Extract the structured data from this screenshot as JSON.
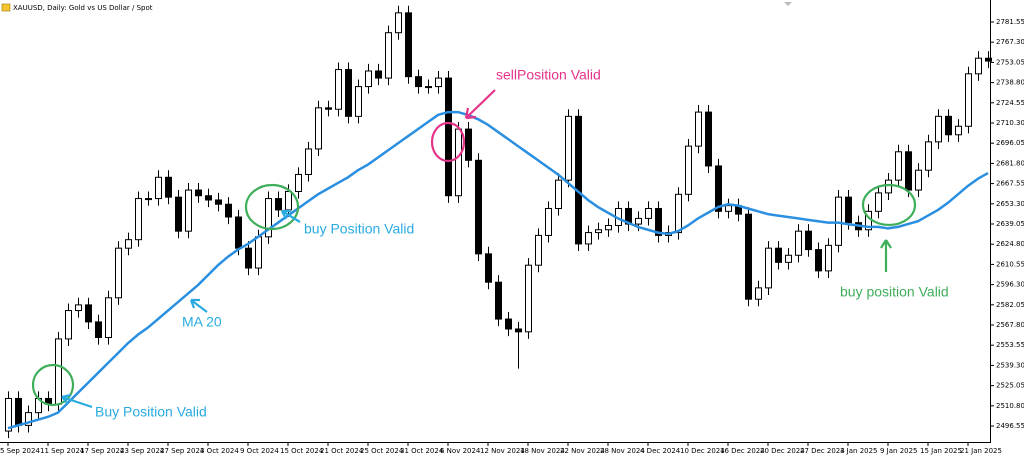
{
  "chart_data": {
    "type": "candlestick",
    "title": "XAUUSD, Daily:  Gold vs US Dollar / Spot",
    "x": [
      "5 Sep 2024",
      null,
      null,
      null,
      "11 Sep 2024",
      null,
      null,
      null,
      "17 Sep 2024",
      null,
      null,
      null,
      "23 Sep 2024",
      null,
      null,
      null,
      "27 Sep 2024",
      null,
      null,
      null,
      "3 Oct 2024",
      null,
      null,
      null,
      "9 Oct 2024",
      null,
      null,
      null,
      "15 Oct 2024",
      null,
      null,
      null,
      "21 Oct 2024",
      null,
      null,
      null,
      "25 Oct 2024",
      null,
      null,
      null,
      "31 Oct 2024",
      null,
      null,
      null,
      "6 Nov 2024",
      null,
      null,
      null,
      "12 Nov 2024",
      null,
      null,
      null,
      "18 Nov 2024",
      null,
      null,
      null,
      "22 Nov 2024",
      null,
      null,
      null,
      "28 Nov 2024",
      null,
      null,
      null,
      "4 Dec 2024",
      null,
      null,
      null,
      "10 Dec 2024",
      null,
      null,
      null,
      "16 Dec 2024",
      null,
      null,
      null,
      "20 Dec 2024",
      null,
      null,
      null,
      "27 Dec 2024",
      null,
      null,
      null,
      "3 Jan 2025",
      null,
      null,
      null,
      "9 Jan 2025",
      null,
      null,
      null,
      "15 Jan 2025",
      null,
      null,
      null,
      "21 Jan 2025",
      null,
      null
    ],
    "open": [
      2493,
      2516,
      2497,
      2506,
      2516,
      2512,
      2558,
      2578,
      2582,
      2570,
      2559,
      2587,
      2622,
      2628,
      2657,
      2657,
      2672,
      2658,
      2634,
      2663,
      2659,
      2656,
      2653,
      2644,
      2622,
      2608,
      2630,
      2657,
      2649,
      2662,
      2674,
      2692,
      2721,
      2720,
      2748,
      2715,
      2736,
      2747,
      2742,
      2774,
      2788,
      2743,
      2736,
      2736,
      2742,
      2659,
      2706,
      2684,
      2618,
      2598,
      2572,
      2565,
      2563,
      2610,
      2631,
      2650,
      2670,
      2715,
      2625,
      2633,
      2635,
      2638,
      2650,
      2639,
      2643,
      2650,
      2631,
      2633,
      2660,
      2694,
      2718,
      2680,
      2648,
      2652,
      2646,
      2586,
      2594,
      2622,
      2612,
      2617,
      2634,
      2621,
      2606,
      2624,
      2658,
      2640,
      2635,
      2648,
      2661,
      2670,
      2690,
      2663,
      2677,
      2697,
      2715,
      2702,
      2708,
      2745,
      2756
    ],
    "high": [
      2521,
      2521,
      2511,
      2521,
      2521,
      2563,
      2583,
      2587,
      2587,
      2575,
      2592,
      2627,
      2633,
      2662,
      2662,
      2677,
      2677,
      2663,
      2668,
      2668,
      2664,
      2661,
      2658,
      2649,
      2627,
      2635,
      2662,
      2662,
      2667,
      2679,
      2697,
      2726,
      2726,
      2753,
      2753,
      2741,
      2752,
      2752,
      2779,
      2793,
      2793,
      2748,
      2741,
      2747,
      2747,
      2711,
      2711,
      2689,
      2623,
      2603,
      2577,
      2570,
      2615,
      2636,
      2655,
      2675,
      2720,
      2720,
      2638,
      2640,
      2643,
      2655,
      2655,
      2648,
      2655,
      2655,
      2638,
      2665,
      2699,
      2723,
      2723,
      2685,
      2657,
      2657,
      2651,
      2599,
      2627,
      2627,
      2622,
      2639,
      2639,
      2626,
      2629,
      2663,
      2663,
      2645,
      2653,
      2666,
      2675,
      2695,
      2695,
      2682,
      2702,
      2720,
      2720,
      2713,
      2750,
      2761,
      2761
    ],
    "low": [
      2488,
      2492,
      2492,
      2501,
      2507,
      2507,
      2553,
      2573,
      2565,
      2554,
      2554,
      2582,
      2617,
      2623,
      2652,
      2652,
      2653,
      2629,
      2629,
      2654,
      2651,
      2648,
      2639,
      2617,
      2603,
      2603,
      2625,
      2644,
      2644,
      2657,
      2669,
      2687,
      2715,
      2715,
      2710,
      2710,
      2731,
      2737,
      2737,
      2769,
      2738,
      2731,
      2731,
      2731,
      2654,
      2654,
      2679,
      2613,
      2593,
      2567,
      2560,
      2537,
      2558,
      2605,
      2626,
      2645,
      2665,
      2620,
      2620,
      2628,
      2630,
      2633,
      2634,
      2634,
      2638,
      2626,
      2626,
      2628,
      2655,
      2689,
      2675,
      2643,
      2643,
      2641,
      2581,
      2581,
      2589,
      2607,
      2607,
      2612,
      2616,
      2601,
      2601,
      2619,
      2635,
      2630,
      2630,
      2643,
      2656,
      2665,
      2658,
      2658,
      2672,
      2692,
      2697,
      2697,
      2703,
      2740,
      2749
    ],
    "close": [
      2516,
      2497,
      2506,
      2516,
      2512,
      2558,
      2578,
      2582,
      2570,
      2559,
      2587,
      2622,
      2628,
      2657,
      2657,
      2672,
      2658,
      2634,
      2663,
      2659,
      2656,
      2653,
      2644,
      2622,
      2608,
      2630,
      2657,
      2649,
      2662,
      2674,
      2692,
      2721,
      2720,
      2748,
      2715,
      2736,
      2747,
      2742,
      2774,
      2788,
      2743,
      2736,
      2736,
      2742,
      2659,
      2706,
      2684,
      2618,
      2598,
      2572,
      2565,
      2563,
      2610,
      2631,
      2650,
      2670,
      2715,
      2625,
      2633,
      2635,
      2638,
      2650,
      2639,
      2643,
      2650,
      2631,
      2633,
      2660,
      2694,
      2718,
      2680,
      2648,
      2652,
      2646,
      2586,
      2594,
      2622,
      2612,
      2617,
      2634,
      2621,
      2606,
      2624,
      2658,
      2640,
      2635,
      2648,
      2661,
      2670,
      2690,
      2663,
      2677,
      2697,
      2715,
      2702,
      2708,
      2745,
      2756,
      2754
    ],
    "series": [
      {
        "name": "MA 20",
        "color": "#2a8fe0",
        "values": [
          2495,
          2497,
          2499,
          2501,
          2503,
          2506,
          2513,
          2520,
          2527,
          2534,
          2541,
          2548,
          2555,
          2561,
          2566,
          2572,
          2578,
          2584,
          2590,
          2596,
          2603,
          2610,
          2616,
          2621,
          2625,
          2630,
          2635,
          2640,
          2645,
          2650,
          2655,
          2660,
          2664,
          2668,
          2672,
          2677,
          2681,
          2686,
          2691,
          2696,
          2701,
          2706,
          2711,
          2716,
          2718,
          2718,
          2716,
          2713,
          2709,
          2704,
          2699,
          2694,
          2689,
          2684,
          2679,
          2674,
          2668,
          2662,
          2656,
          2651,
          2647,
          2643,
          2640,
          2637,
          2635,
          2633,
          2632,
          2634,
          2638,
          2643,
          2647,
          2651,
          2653,
          2652,
          2650,
          2648,
          2646,
          2645,
          2644,
          2643,
          2642,
          2641,
          2640,
          2640,
          2639,
          2638,
          2637,
          2637,
          2636,
          2637,
          2639,
          2641,
          2645,
          2649,
          2654,
          2660,
          2666,
          2671,
          2675
        ]
      }
    ],
    "annotations": [
      "sellPosition Valid",
      "buy Position Valid",
      "buy position Valid",
      "Buy Position Valid"
    ],
    "ylim": [
      2485.28,
      2797.07
    ],
    "yticks": [
      2496.55,
      {
        "value": 2510.8,
        "label": "2510.80"
      },
      2525.05,
      {
        "value": 2539.3,
        "label": "2539.30"
      },
      2553.55,
      {
        "value": 2567.8,
        "label": "2567.80"
      },
      2582.05,
      {
        "value": 2596.3,
        "label": "2596.30"
      },
      2610.55,
      {
        "value": 2624.8,
        "label": "2624.80"
      },
      2639.05,
      {
        "value": 2653.3,
        "label": "2653.30"
      },
      2667.55,
      {
        "value": 2681.8,
        "label": "2681.80"
      },
      2696.05,
      {
        "value": 2710.3,
        "label": "2710.30"
      },
      2724.55,
      {
        "value": 2738.8,
        "label": "2738.80"
      },
      2753.05,
      {
        "value": 2767.3,
        "label": "2767.30"
      },
      2781.55
    ],
    "up_color": "#ffffff",
    "down_color": "#000000",
    "grid": false
  }
}
